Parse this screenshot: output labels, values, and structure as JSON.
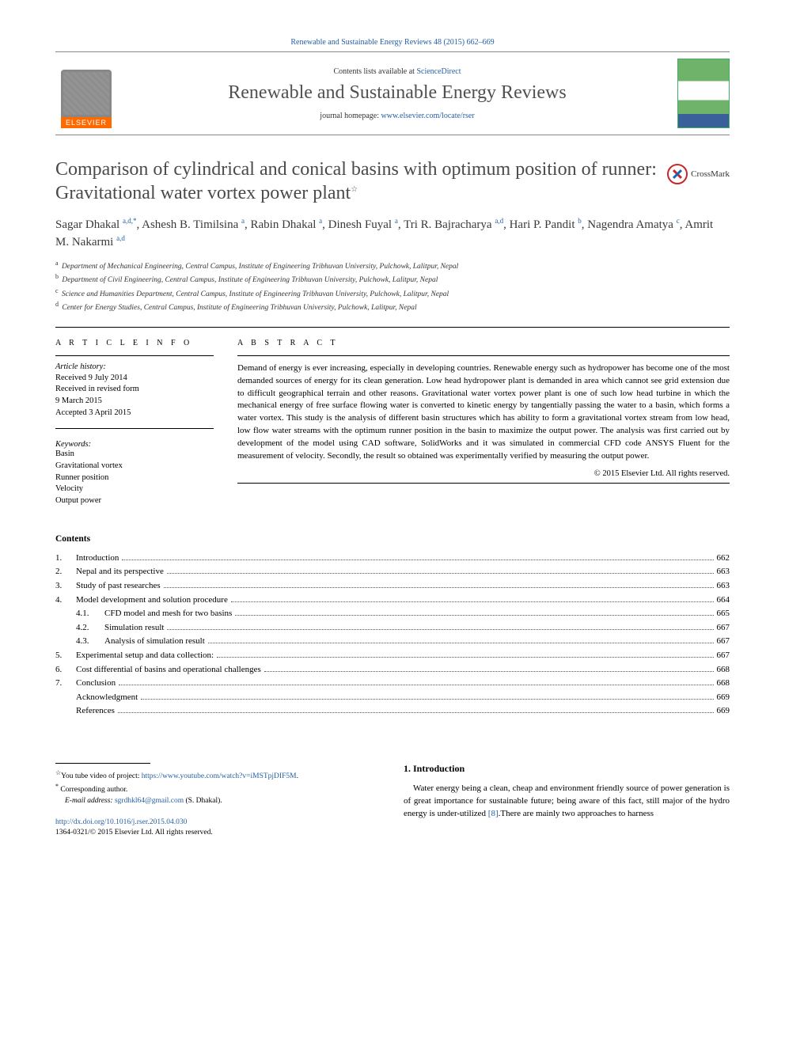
{
  "top_link": "Renewable and Sustainable Energy Reviews 48 (2015) 662–669",
  "masthead": {
    "contents_prefix": "Contents lists available at ",
    "contents_link": "ScienceDirect",
    "journal_name": "Renewable and Sustainable Energy Reviews",
    "homepage_prefix": "journal homepage: ",
    "homepage_link": "www.elsevier.com/locate/rser",
    "publisher_label": "ELSEVIER"
  },
  "article": {
    "title": "Comparison of cylindrical and conical basins with optimum position of runner: Gravitational water vortex power plant",
    "title_note_marker": "☆",
    "crossmark_label": "CrossMark"
  },
  "authors_html": "Sagar Dhakal <sup>a,d,*</sup>, Ashesh B. Timilsina <sup>a</sup>, Rabin Dhakal <sup>a</sup>, Dinesh Fuyal <sup>a</sup>, Tri R. Bajracharya <sup>a,d</sup>, Hari P. Pandit <sup>b</sup>, Nagendra Amatya <sup>c</sup>, Amrit M. Nakarmi <sup>a,d</sup>",
  "affiliations": [
    {
      "mark": "a",
      "text": "Department of Mechanical Engineering, Central Campus, Institute of Engineering Tribhuvan University, Pulchowk, Lalitpur, Nepal"
    },
    {
      "mark": "b",
      "text": "Department of Civil Engineering, Central Campus, Institute of Engineering Tribhuvan University, Pulchowk, Lalitpur, Nepal"
    },
    {
      "mark": "c",
      "text": "Science and Humanities Department, Central Campus, Institute of Engineering Tribhuvan University, Pulchowk, Lalitpur, Nepal"
    },
    {
      "mark": "d",
      "text": "Center for Energy Studies, Central Campus, Institute of Engineering Tribhuvan University, Pulchowk, Lalitpur, Nepal"
    }
  ],
  "article_info": {
    "section_label": "A R T I C L E  I N F O",
    "history_label": "Article history:",
    "history": [
      "Received 9 July 2014",
      "Received in revised form",
      "9 March 2015",
      "Accepted 3 April 2015"
    ],
    "keywords_label": "Keywords:",
    "keywords": [
      "Basin",
      "Gravitational vortex",
      "Runner position",
      "Velocity",
      "Output power"
    ]
  },
  "abstract": {
    "section_label": "A B S T R A C T",
    "text": "Demand of energy is ever increasing, especially in developing countries. Renewable energy such as hydropower has become one of the most demanded sources of energy for its clean generation. Low head hydropower plant is demanded in area which cannot see grid extension due to difficult geographical terrain and other reasons. Gravitational water vortex power plant is one of such low head turbine in which the mechanical energy of free surface flowing water is converted to kinetic energy by tangentially passing the water to a basin, which forms a water vortex. This study is the analysis of different basin structures which has ability to form a gravitational vortex stream from low head, low flow water streams with the optimum runner position in the basin to maximize the output power. The analysis was first carried out by development of the model using CAD software, SolidWorks and it was simulated in commercial CFD code ANSYS Fluent for the measurement of velocity. Secondly, the result so obtained was experimentally verified by measuring the output power.",
    "copyright": "© 2015 Elsevier Ltd. All rights reserved."
  },
  "contents": {
    "header": "Contents",
    "items": [
      {
        "num": "1.",
        "label": "Introduction",
        "page": "662",
        "level": 0
      },
      {
        "num": "2.",
        "label": "Nepal and its perspective",
        "page": "663",
        "level": 0
      },
      {
        "num": "3.",
        "label": "Study of past researches",
        "page": "663",
        "level": 0
      },
      {
        "num": "4.",
        "label": "Model development and solution procedure",
        "page": "664",
        "level": 0
      },
      {
        "num": "4.1.",
        "label": "CFD model and mesh for two basins",
        "page": "665",
        "level": 1
      },
      {
        "num": "4.2.",
        "label": "Simulation result",
        "page": "667",
        "level": 1
      },
      {
        "num": "4.3.",
        "label": "Analysis of simulation result",
        "page": "667",
        "level": 1
      },
      {
        "num": "5.",
        "label": "Experimental setup and data collection:",
        "page": "667",
        "level": 0
      },
      {
        "num": "6.",
        "label": "Cost differential of basins and operational challenges",
        "page": "668",
        "level": 0
      },
      {
        "num": "7.",
        "label": "Conclusion",
        "page": "668",
        "level": 0
      },
      {
        "num": "",
        "label": "Acknowledgment",
        "page": "669",
        "level": 0
      },
      {
        "num": "",
        "label": "References",
        "page": "669",
        "level": 0
      }
    ]
  },
  "footnotes": {
    "note_marker": "☆",
    "note_text": "You tube video of project: ",
    "note_link": "https://www.youtube.com/watch?v=iMSTpjDIF5M",
    "note_suffix": ".",
    "corr_marker": "*",
    "corr_text": "Corresponding author.",
    "email_label": "E-mail address: ",
    "email": "sgrdhkl64@gmail.com",
    "email_suffix": " (S. Dhakal)."
  },
  "intro": {
    "heading": "1. Introduction",
    "text_prefix": "Water energy being a clean, cheap and environment friendly source of power generation is of great importance for sustainable future; being aware of this fact, still major of the hydro energy is under-utilized ",
    "ref": "[8]",
    "text_suffix": ".There are mainly two approaches to harness"
  },
  "doi": {
    "link": "http://dx.doi.org/10.1016/j.rser.2015.04.030",
    "issn_line": "1364-0321/© 2015 Elsevier Ltd. All rights reserved."
  },
  "colors": {
    "link": "#2560a4",
    "accent_orange": "#ff6a00",
    "text": "#000000",
    "title_grey": "#4a4a4a"
  }
}
